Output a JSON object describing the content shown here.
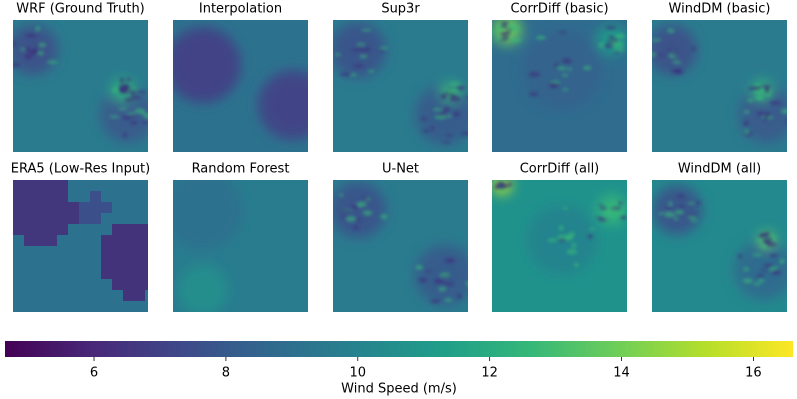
{
  "chart_data": {
    "type": "heatmap",
    "panels": [
      "WRF (Ground Truth)",
      "Interpolation",
      "Sup3r",
      "CorrDiff (basic)",
      "WindDM (basic)",
      "ERA5 (Low-Res Input)",
      "Random Forest",
      "U-Net",
      "CorrDiff (all)",
      "WindDM (all)"
    ],
    "colorbar": {
      "label": "Wind Speed (m/s)",
      "lim": [
        4.65,
        16.6
      ],
      "ticks": [
        6,
        8,
        10,
        12,
        14,
        16
      ],
      "colors": [
        "#440154",
        "#482878",
        "#3e4989",
        "#31688e",
        "#26828e",
        "#1f9e89",
        "#35b779",
        "#6ece58",
        "#b5de2b",
        "#fde725"
      ]
    }
  }
}
